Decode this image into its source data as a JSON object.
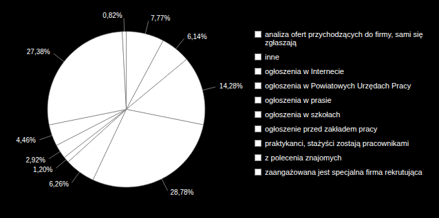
{
  "chart_data": {
    "type": "pie",
    "categories": [
      "analiza ofert przychodzących do firmy, sami się zgłaszają",
      "inne",
      "ogłoszenia w Internecie",
      "ogłoszenia w Powiatowych Urzędach Pracy",
      "ogłoszenia w prasie",
      "ogłoszenia w szkołach",
      "ogłoszenie przed zakładem pracy",
      "praktykanci, stażyści zostają pracownikami",
      "z polecenia znajomych",
      "zaangażowana jest specjalna firma rekrutująca"
    ],
    "values": [
      7.77,
      6.14,
      14.28,
      28.78,
      6.26,
      1.2,
      2.92,
      4.46,
      27.38,
      0.82
    ],
    "value_labels": [
      "7,77%",
      "6,14%",
      "14,28%",
      "28,78%",
      "6,26%",
      "1,20%",
      "2,92%",
      "4,46%",
      "27,38%",
      "0,82%"
    ],
    "color": "#ffffff",
    "data_labels": true,
    "legend": "right"
  }
}
